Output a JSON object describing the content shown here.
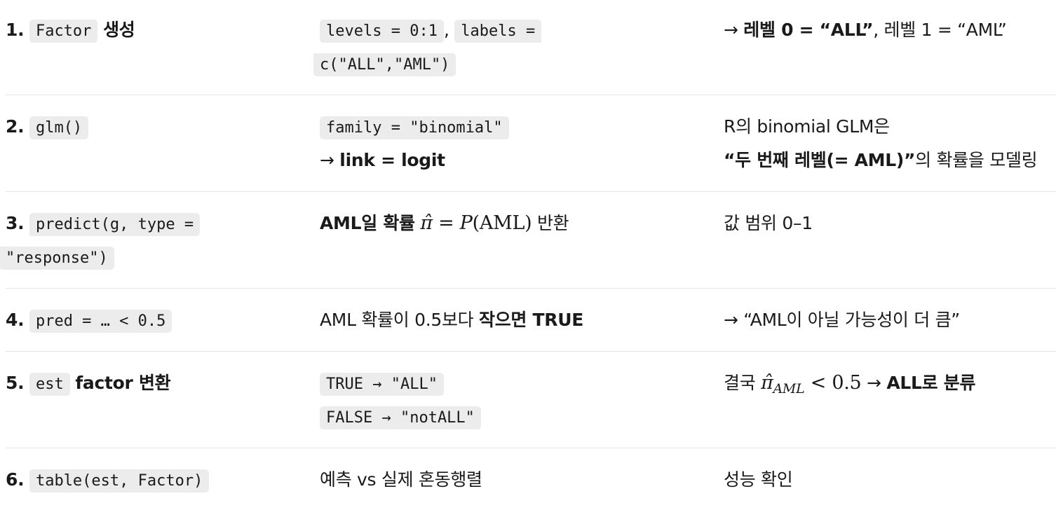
{
  "rows": [
    {
      "num": "1.",
      "step_code": "Factor",
      "step_text": "생성",
      "detail_code_a": "levels = 0:1",
      "detail_sep": ",",
      "detail_code_b1": "labels =",
      "detail_code_b2": "c(\"ALL\",\"AML\")",
      "note_arrow": "→ ",
      "note_bold": "레벨 0 = “ALL”",
      "note_rest": ", 레벨 1 = “AML”"
    },
    {
      "num": "2.",
      "step_code": "glm()",
      "detail_code": "family = \"binomial\"",
      "detail_line2_arrow": "→ ",
      "detail_line2_bold": "link = logit",
      "note_line1": "R의 binomial GLM은",
      "note_line2_bold": "“두 번째 레벨(= AML)”",
      "note_line2_rest": "의 확률을 모델링"
    },
    {
      "num": "3.",
      "step_code_1": "predict(g, type =",
      "step_code_2": "\"response\")",
      "detail_bold": "AML일 확률",
      "detail_math_hat": "π̂",
      "detail_math_eq": "=",
      "detail_math_p": "P",
      "detail_math_arg": "(AML)",
      "detail_rest": "반환",
      "note": "값 범위 0–1"
    },
    {
      "num": "4.",
      "step_code": "pred = … < 0.5",
      "detail_text": "AML 확률이 0.5보다 ",
      "detail_bold": "작으면 TRUE",
      "note": "→ “AML이 아닐 가능성이 더 큼”"
    },
    {
      "num": "5.",
      "step_code": "est",
      "step_bold": "factor 변환",
      "detail_code_1": "TRUE → \"ALL\"",
      "detail_code_2": "FALSE → \"notALL\"",
      "note_text": "결국 ",
      "note_math_hat": "π̂",
      "note_math_sub": "AML",
      "note_math_rel": "< 0.5",
      "note_arrow": " → ",
      "note_bold": "ALL로 분류"
    },
    {
      "num": "6.",
      "step_code": "table(est, Factor)",
      "detail_text": "예측 vs 실제 혼동행렬",
      "note": "성능 확인"
    }
  ]
}
